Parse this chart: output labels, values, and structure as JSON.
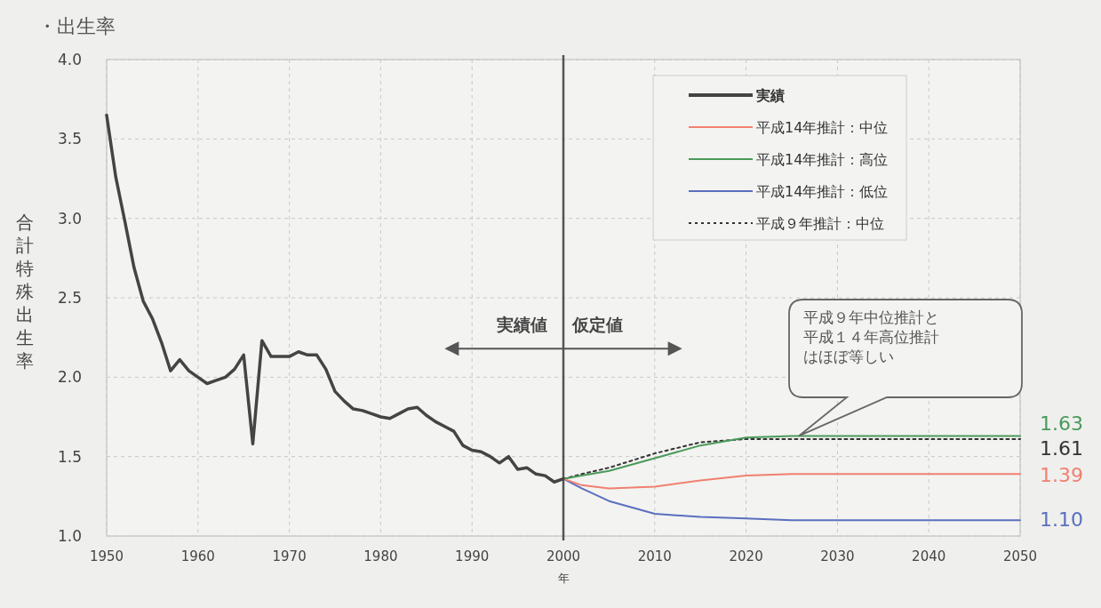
{
  "chart_data": {
    "type": "line",
    "title": "・出生率",
    "ylabel": "合計特殊出生率",
    "xlabel": "年",
    "xlim": [
      1950,
      2050
    ],
    "ylim": [
      1.0,
      4.0
    ],
    "xticks": [
      1950,
      1960,
      1970,
      1980,
      1990,
      2000,
      2010,
      2020,
      2030,
      2040,
      2050
    ],
    "yticks": [
      {
        "value": 1.0,
        "label": "1.0"
      },
      {
        "value": 1.5,
        "label": "1.5"
      },
      {
        "value": 2.0,
        "label": "2.0"
      },
      {
        "value": 2.5,
        "label": "2.5"
      },
      {
        "value": 3.0,
        "label": "3.0"
      },
      {
        "value": 3.5,
        "label": "3.5"
      },
      {
        "value": 4.0,
        "label": "4.0"
      }
    ],
    "grid": true,
    "legend": "top right",
    "ref_lines": [
      {
        "axis": "x",
        "value": 2000,
        "color": "#555555"
      }
    ],
    "series": [
      {
        "name": "実績",
        "color": "#444444",
        "line_style": "solid",
        "x": [
          1950,
          1951,
          1952,
          1953,
          1954,
          1955,
          1956,
          1957,
          1958,
          1959,
          1960,
          1961,
          1962,
          1963,
          1964,
          1965,
          1966,
          1967,
          1968,
          1969,
          1970,
          1971,
          1972,
          1973,
          1974,
          1975,
          1976,
          1977,
          1978,
          1979,
          1980,
          1981,
          1982,
          1983,
          1984,
          1985,
          1986,
          1987,
          1988,
          1989,
          1990,
          1991,
          1992,
          1993,
          1994,
          1995,
          1996,
          1997,
          1998,
          1999,
          2000
        ],
        "values": [
          3.65,
          3.26,
          2.98,
          2.69,
          2.48,
          2.37,
          2.22,
          2.04,
          2.11,
          2.04,
          2.0,
          1.96,
          1.98,
          2.0,
          2.05,
          2.14,
          1.58,
          2.23,
          2.13,
          2.13,
          2.13,
          2.16,
          2.14,
          2.14,
          2.05,
          1.91,
          1.85,
          1.8,
          1.79,
          1.77,
          1.75,
          1.74,
          1.77,
          1.8,
          1.81,
          1.76,
          1.72,
          1.69,
          1.66,
          1.57,
          1.54,
          1.53,
          1.5,
          1.46,
          1.5,
          1.42,
          1.43,
          1.39,
          1.38,
          1.34,
          1.36
        ]
      },
      {
        "name": "平成14年推計：中位",
        "color": "#f08070",
        "line_style": "solid",
        "x": [
          2000,
          2002,
          2005,
          2010,
          2015,
          2020,
          2025,
          2030,
          2040,
          2050
        ],
        "values": [
          1.36,
          1.32,
          1.3,
          1.31,
          1.35,
          1.38,
          1.39,
          1.39,
          1.39,
          1.39
        ],
        "value_labels": [
          null,
          null,
          null,
          null,
          null,
          null,
          null,
          null,
          null,
          "1.39"
        ]
      },
      {
        "name": "平成14年推計：高位",
        "color": "#4a9a5a",
        "line_style": "solid",
        "x": [
          2000,
          2002,
          2005,
          2010,
          2015,
          2020,
          2025,
          2030,
          2040,
          2050
        ],
        "values": [
          1.36,
          1.38,
          1.41,
          1.49,
          1.57,
          1.62,
          1.63,
          1.63,
          1.63,
          1.63
        ],
        "value_labels": [
          null,
          null,
          null,
          null,
          null,
          null,
          null,
          null,
          null,
          "1.63"
        ]
      },
      {
        "name": "平成14年推計：低位",
        "color": "#5a6fbf",
        "line_style": "solid",
        "x": [
          2000,
          2002,
          2005,
          2010,
          2015,
          2020,
          2025,
          2030,
          2040,
          2050
        ],
        "values": [
          1.36,
          1.3,
          1.22,
          1.14,
          1.12,
          1.11,
          1.1,
          1.1,
          1.1,
          1.1
        ],
        "value_labels": [
          null,
          null,
          null,
          null,
          null,
          null,
          null,
          null,
          null,
          "1.10"
        ]
      },
      {
        "name": "平成９年推計：中位",
        "color": "#333333",
        "line_style": "dotted",
        "x": [
          2000,
          2002,
          2005,
          2010,
          2015,
          2020,
          2025,
          2030,
          2040,
          2050
        ],
        "values": [
          1.36,
          1.39,
          1.43,
          1.52,
          1.59,
          1.61,
          1.61,
          1.61,
          1.61,
          1.61
        ],
        "value_labels": [
          null,
          null,
          null,
          null,
          null,
          null,
          null,
          null,
          null,
          "1.61"
        ]
      }
    ],
    "annotations": [
      "実績値",
      "仮定値",
      "平成９年中位推計と平成１４年高位推計はほぼ等しい"
    ]
  }
}
